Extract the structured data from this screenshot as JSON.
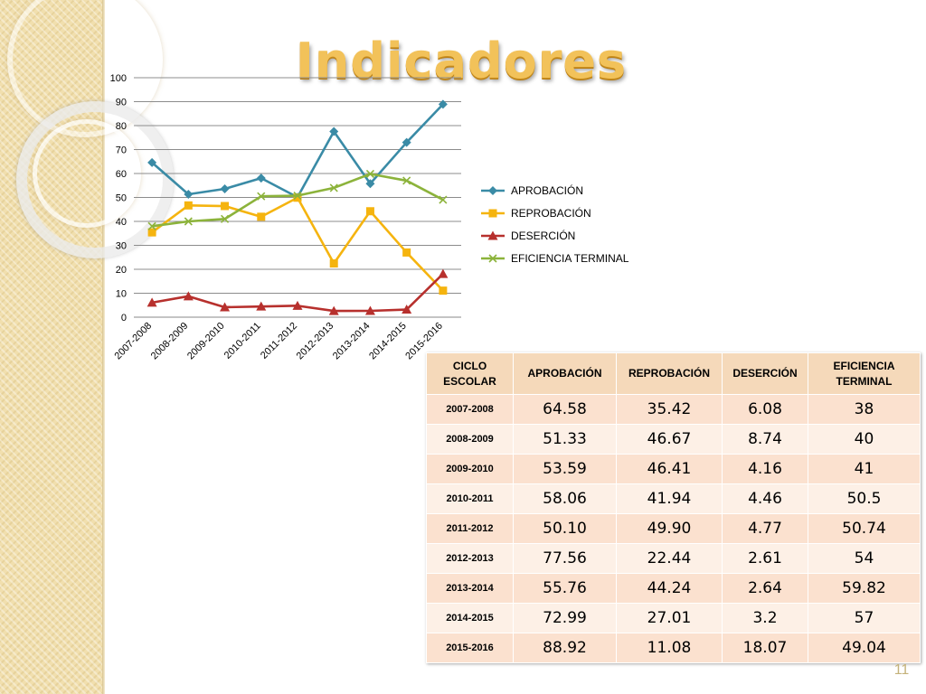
{
  "title": "Indicadores",
  "page_number": "11",
  "colors": {
    "band": "#f1dfae",
    "title": "#f2c25a",
    "aprobacion": "#3a8ba6",
    "reprobacion": "#f5b40f",
    "desercion": "#b7302d",
    "eficiencia": "#8cb33b",
    "header_bg": "#f5d9ba",
    "row_odd": "#fbe1cf",
    "row_even": "#fdf0e6"
  },
  "chart_data": {
    "type": "line",
    "title": "",
    "xlabel": "",
    "ylabel": "",
    "ylim": [
      0,
      100
    ],
    "yticks": [
      0,
      10,
      20,
      30,
      40,
      50,
      60,
      70,
      80,
      90,
      100
    ],
    "grid": true,
    "legend": "right",
    "categories": [
      "2007-2008",
      "2008-2009",
      "2009-2010",
      "2010-2011",
      "2011-2012",
      "2012-2013",
      "2013-2014",
      "2014-2015",
      "2015-2016"
    ],
    "series": [
      {
        "name": "APROBACIÓN",
        "marker": "diamond",
        "color": "#3a8ba6",
        "values": [
          64.58,
          51.33,
          53.59,
          58.06,
          50.1,
          77.56,
          55.76,
          72.99,
          88.92
        ]
      },
      {
        "name": "REPROBACIÓN",
        "marker": "square",
        "color": "#f5b40f",
        "values": [
          35.42,
          46.67,
          46.41,
          41.94,
          49.9,
          22.44,
          44.24,
          27.01,
          11.08
        ]
      },
      {
        "name": "DESERCIÓN",
        "marker": "triangle",
        "color": "#b7302d",
        "values": [
          6.08,
          8.74,
          4.16,
          4.46,
          4.77,
          2.61,
          2.64,
          3.2,
          18.07
        ]
      },
      {
        "name": "EFICIENCIA TERMINAL",
        "marker": "x",
        "color": "#8cb33b",
        "values": [
          38,
          40,
          41,
          50.5,
          50.74,
          54,
          59.82,
          57,
          49.04
        ]
      }
    ]
  },
  "table": {
    "headers": [
      "CICLO ESCOLAR",
      "APROBACIÓN",
      "REPROBACIÓN",
      "DESERCIÓN",
      "EFICIENCIA TERMINAL"
    ],
    "rows": [
      [
        "2007-2008",
        "64.58",
        "35.42",
        "6.08",
        "38"
      ],
      [
        "2008-2009",
        "51.33",
        "46.67",
        "8.74",
        "40"
      ],
      [
        "2009-2010",
        "53.59",
        "46.41",
        "4.16",
        "41"
      ],
      [
        "2010-2011",
        "58.06",
        "41.94",
        "4.46",
        "50.5"
      ],
      [
        "2011-2012",
        "50.10",
        "49.90",
        "4.77",
        "50.74"
      ],
      [
        "2012-2013",
        "77.56",
        "22.44",
        "2.61",
        "54"
      ],
      [
        "2013-2014",
        "55.76",
        "44.24",
        "2.64",
        "59.82"
      ],
      [
        "2014-2015",
        "72.99",
        "27.01",
        "3.2",
        "57"
      ],
      [
        "2015-2016",
        "88.92",
        "11.08",
        "18.07",
        "49.04"
      ]
    ]
  }
}
